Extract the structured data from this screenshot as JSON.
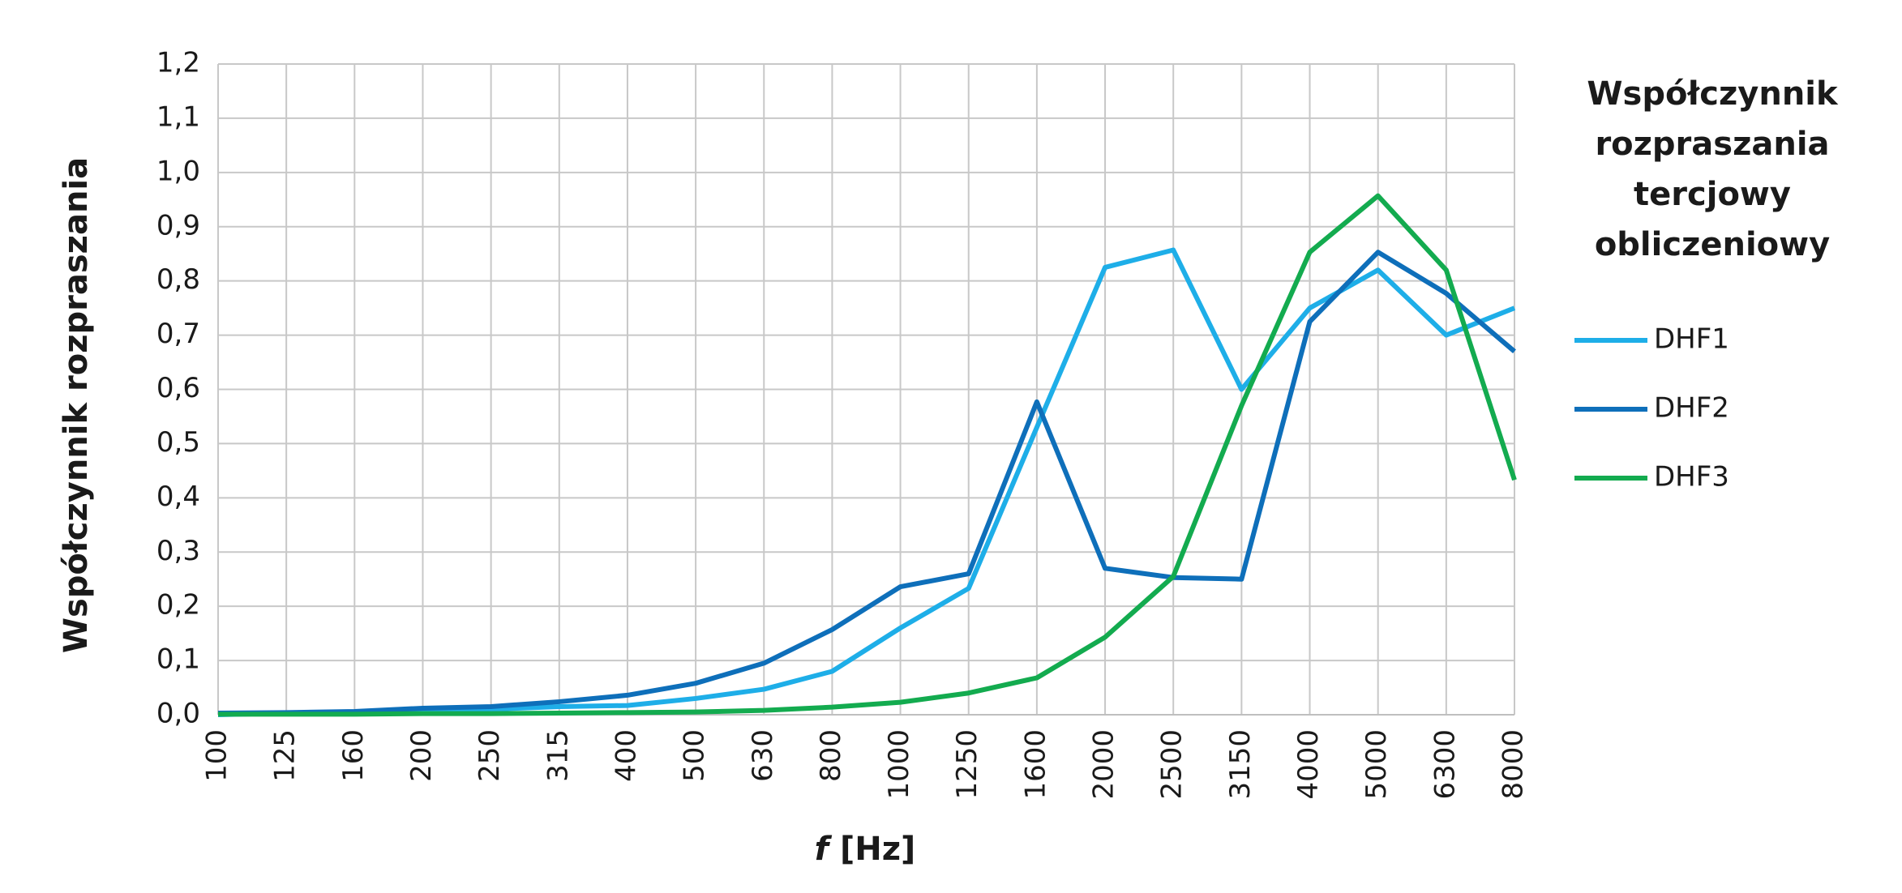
{
  "chart_data": {
    "type": "line",
    "y_label": "Współczynnik rozpraszania",
    "x_label_symbol": "f",
    "x_label_unit": "[Hz]",
    "legend_title": [
      "Współczynnik",
      "rozpraszania",
      "tercjowy",
      "obliczeniowy"
    ],
    "legend_position": "right",
    "grid": true,
    "categories": [
      "100",
      "125",
      "160",
      "200",
      "250",
      "315",
      "400",
      "500",
      "630",
      "800",
      "1000",
      "1250",
      "1600",
      "2000",
      "2500",
      "3150",
      "4000",
      "5000",
      "6300",
      "8000"
    ],
    "ylim": [
      0,
      1.2
    ],
    "yticks": [
      {
        "value": 0,
        "label": "0,0"
      },
      {
        "value": 0.1,
        "label": "0,1"
      },
      {
        "value": 0.2,
        "label": "0,2"
      },
      {
        "value": 0.3,
        "label": "0,3"
      },
      {
        "value": 0.4,
        "label": "0,4"
      },
      {
        "value": 0.5,
        "label": "0,5"
      },
      {
        "value": 0.6,
        "label": "0,6"
      },
      {
        "value": 0.7,
        "label": "0,7"
      },
      {
        "value": 0.8,
        "label": "0,8"
      },
      {
        "value": 0.9,
        "label": "0,9"
      },
      {
        "value": 1.0,
        "label": "1,0"
      },
      {
        "value": 1.1,
        "label": "1,1"
      },
      {
        "value": 1.2,
        "label": "1,2"
      }
    ],
    "series": [
      {
        "name": "DHF1",
        "color": "#1eaee8",
        "values": [
          0.0,
          0.003,
          0.005,
          0.007,
          0.01,
          0.015,
          0.017,
          0.03,
          0.047,
          0.08,
          0.16,
          0.233,
          0.53,
          0.825,
          0.857,
          0.6,
          0.75,
          0.82,
          0.7,
          0.75
        ]
      },
      {
        "name": "DHF2",
        "color": "#0e6fba",
        "values": [
          0.003,
          0.004,
          0.006,
          0.012,
          0.015,
          0.024,
          0.036,
          0.058,
          0.095,
          0.157,
          0.236,
          0.26,
          0.577,
          0.27,
          0.253,
          0.25,
          0.725,
          0.853,
          0.777,
          0.67
        ]
      },
      {
        "name": "DHF3",
        "color": "#13ab4f",
        "values": [
          0.001,
          0.001,
          0.001,
          0.002,
          0.002,
          0.003,
          0.004,
          0.005,
          0.008,
          0.014,
          0.023,
          0.04,
          0.068,
          0.143,
          0.255,
          0.57,
          0.853,
          0.957,
          0.82,
          0.433
        ]
      }
    ]
  }
}
